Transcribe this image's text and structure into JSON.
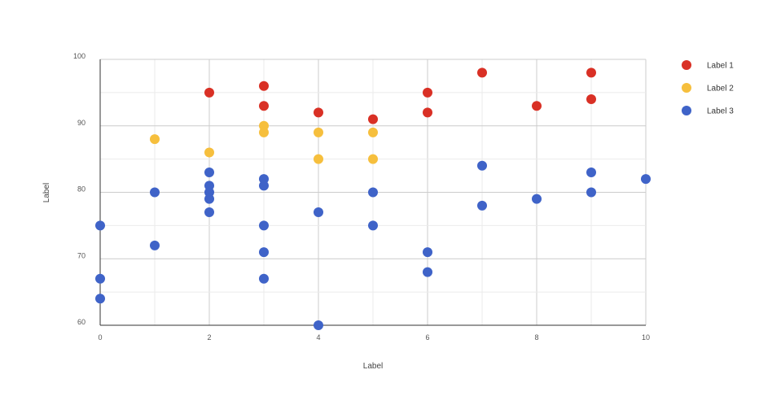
{
  "chart_data": {
    "type": "scatter",
    "xlabel": "Label",
    "ylabel": "Label",
    "xlim": [
      0,
      10
    ],
    "ylim": [
      60,
      100
    ],
    "x_ticks": [
      0,
      2,
      4,
      6,
      8,
      10
    ],
    "y_ticks": [
      60,
      70,
      80,
      90,
      100
    ],
    "grid": true,
    "legend_position": "right",
    "series": [
      {
        "name": "Label 1",
        "color": "#d93025",
        "points": [
          [
            2,
            95
          ],
          [
            3,
            96
          ],
          [
            3,
            93
          ],
          [
            4,
            92
          ],
          [
            5,
            91
          ],
          [
            6,
            95
          ],
          [
            6,
            92
          ],
          [
            7,
            98
          ],
          [
            8,
            93
          ],
          [
            9,
            98
          ],
          [
            9,
            94
          ]
        ]
      },
      {
        "name": "Label 2",
        "color": "#f6bf3d",
        "points": [
          [
            1,
            88
          ],
          [
            2,
            86
          ],
          [
            3,
            90
          ],
          [
            3,
            89
          ],
          [
            4,
            89
          ],
          [
            4,
            85
          ],
          [
            5,
            89
          ],
          [
            5,
            85
          ]
        ]
      },
      {
        "name": "Label 3",
        "color": "#3f63c8",
        "points": [
          [
            0,
            75
          ],
          [
            0,
            67
          ],
          [
            0,
            64
          ],
          [
            1,
            80
          ],
          [
            1,
            72
          ],
          [
            2,
            83
          ],
          [
            2,
            81
          ],
          [
            2,
            80
          ],
          [
            2,
            79
          ],
          [
            2,
            77
          ],
          [
            3,
            82
          ],
          [
            3,
            81
          ],
          [
            3,
            75
          ],
          [
            3,
            71
          ],
          [
            3,
            67
          ],
          [
            4,
            77
          ],
          [
            4,
            60
          ],
          [
            5,
            80
          ],
          [
            5,
            75
          ],
          [
            6,
            71
          ],
          [
            6,
            68
          ],
          [
            7,
            84
          ],
          [
            7,
            78
          ],
          [
            8,
            79
          ],
          [
            9,
            83
          ],
          [
            9,
            80
          ],
          [
            10,
            82
          ]
        ]
      }
    ]
  }
}
